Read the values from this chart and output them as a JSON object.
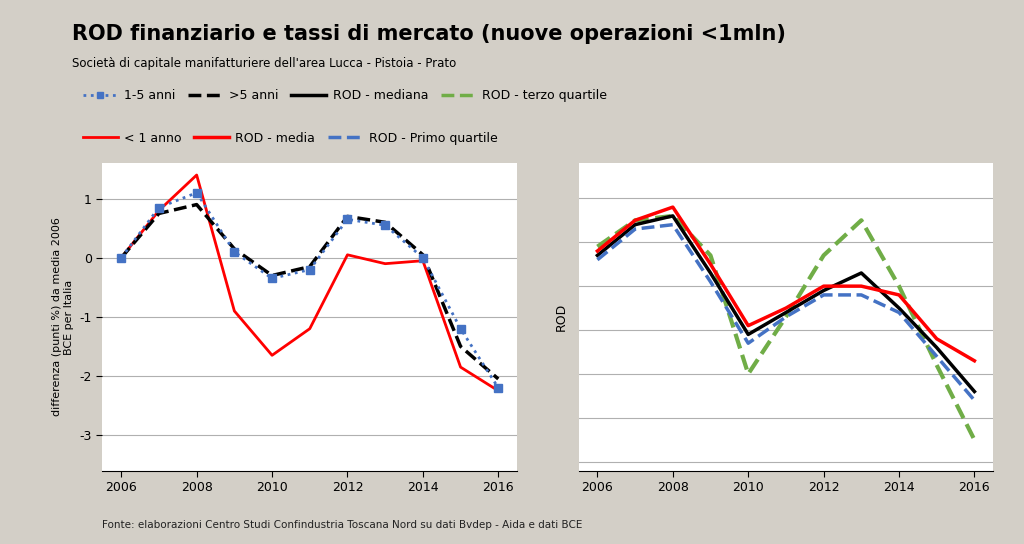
{
  "title": "ROD finanziario e tassi di mercato (nuove operazioni <1mln)",
  "subtitle": "Società di capitale manifatturiere dell'area Lucca - Pistoia - Prato",
  "footnote": "Fonte: elaborazioni Centro Studi Confindustria Toscana Nord su dati Bvdep - Aida e dati BCE",
  "background_color": "#d3cfc7",
  "plot_bg_color": "#ffffff",
  "left_panel": {
    "ylim": [
      -3.6,
      1.6
    ],
    "yticks": [
      -3,
      -2,
      -1,
      0,
      1
    ],
    "years": [
      2006,
      2007,
      2008,
      2009,
      2010,
      2011,
      2012,
      2013,
      2014,
      2015,
      2016
    ],
    "series": {
      "1_5_anni": {
        "label": "1-5 anni",
        "color": "#4472c4",
        "linestyle": "dotted",
        "marker": "s",
        "markersize": 6,
        "linewidth": 2,
        "values": [
          0.0,
          0.85,
          1.1,
          0.1,
          -0.35,
          -0.2,
          0.65,
          0.55,
          0.0,
          -1.2,
          -2.2
        ]
      },
      "gt5_anni": {
        "label": ">5 anni",
        "color": "#000000",
        "linestyle": "dashed",
        "linewidth": 2.5,
        "values": [
          0.0,
          0.75,
          0.9,
          0.15,
          -0.3,
          -0.15,
          0.7,
          0.6,
          0.05,
          -1.5,
          -2.05
        ]
      },
      "lt1_anno": {
        "label": "< 1 anno",
        "color": "#ff0000",
        "linestyle": "solid",
        "linewidth": 2,
        "values": [
          0.0,
          0.8,
          1.4,
          -0.9,
          -1.65,
          -1.2,
          0.05,
          -0.1,
          -0.05,
          -1.85,
          -2.25
        ]
      }
    }
  },
  "right_panel": {
    "years": [
      2006,
      2007,
      2008,
      2009,
      2010,
      2011,
      2012,
      2013,
      2014,
      2015,
      2016
    ],
    "series": {
      "rod_media": {
        "label": "ROD - media",
        "color": "#ff0000",
        "linestyle": "solid",
        "linewidth": 2.5,
        "values": [
          5.8,
          6.5,
          6.8,
          5.5,
          4.1,
          4.5,
          5.0,
          5.0,
          4.8,
          3.8,
          3.3
        ]
      },
      "rod_mediana": {
        "label": "ROD - mediana",
        "color": "#000000",
        "linestyle": "solid",
        "linewidth": 2.5,
        "values": [
          5.7,
          6.4,
          6.6,
          5.3,
          3.9,
          4.4,
          4.9,
          5.3,
          4.5,
          3.6,
          2.6
        ]
      },
      "rod_primo_quartile": {
        "label": "ROD - Primo quartile",
        "color": "#4472c4",
        "linestyle": "dashed",
        "linewidth": 2.5,
        "values": [
          5.6,
          6.3,
          6.4,
          5.1,
          3.7,
          4.3,
          4.8,
          4.8,
          4.4,
          3.4,
          2.4
        ]
      },
      "rod_terzo_quartile": {
        "label": "ROD - terzo quartile",
        "color": "#70ad47",
        "linestyle": "dashed",
        "linewidth": 3.0,
        "values": [
          5.9,
          6.5,
          6.6,
          5.7,
          3.0,
          4.3,
          5.7,
          6.5,
          5.0,
          3.2,
          1.5
        ]
      }
    }
  },
  "legend_row1": [
    {
      "label": "1-5 anni",
      "color": "#4472c4",
      "linestyle": "dotted",
      "marker": "s",
      "markersize": 5,
      "linewidth": 2
    },
    {
      "label": ">5 anni",
      "color": "#000000",
      "linestyle": "dashed",
      "marker": null,
      "markersize": 0,
      "linewidth": 2.5
    },
    {
      "label": "ROD - mediana",
      "color": "#000000",
      "linestyle": "solid",
      "marker": null,
      "markersize": 0,
      "linewidth": 2.5
    },
    {
      "label": "ROD - terzo quartile",
      "color": "#70ad47",
      "linestyle": "dashed",
      "marker": null,
      "markersize": 0,
      "linewidth": 2.5
    }
  ],
  "legend_row2": [
    {
      "label": "< 1 anno",
      "color": "#ff0000",
      "linestyle": "solid",
      "marker": null,
      "markersize": 0,
      "linewidth": 2
    },
    {
      "label": "ROD - media",
      "color": "#ff0000",
      "linestyle": "solid",
      "marker": null,
      "markersize": 0,
      "linewidth": 2.5
    },
    {
      "label": "ROD - Primo quartile",
      "color": "#4472c4",
      "linestyle": "dashed",
      "marker": null,
      "markersize": 0,
      "linewidth": 2.5
    }
  ]
}
